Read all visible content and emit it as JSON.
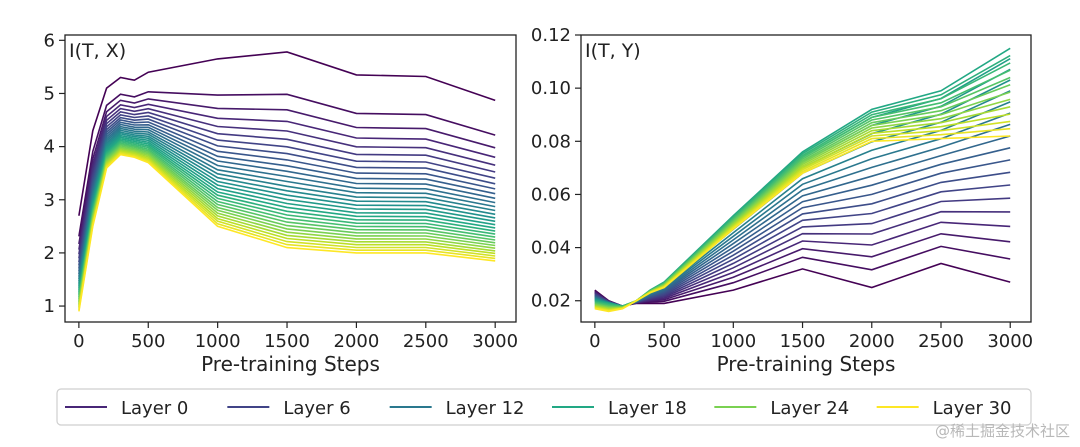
{
  "legend": [
    {
      "label": "Layer 0",
      "color": "#482677"
    },
    {
      "label": "Layer 6",
      "color": "#414487"
    },
    {
      "label": "Layer 12",
      "color": "#2a788e"
    },
    {
      "label": "Layer 18",
      "color": "#22a884"
    },
    {
      "label": "Layer 24",
      "color": "#7ad151"
    },
    {
      "label": "Layer 30",
      "color": "#fde725"
    }
  ],
  "watermark": "@稀土掘金技术社区",
  "chart_data": [
    {
      "type": "line",
      "title": "I(T, X)",
      "xlabel": "Pre-training Steps",
      "ylabel": "",
      "xlim": [
        -100,
        3150
      ],
      "ylim": [
        0.7,
        6.1
      ],
      "xticks": [
        0,
        500,
        1000,
        1500,
        2000,
        2500,
        3000
      ],
      "yticks": [
        1,
        2,
        3,
        4,
        5,
        6
      ],
      "ytick_labels": [
        "1",
        "2",
        "3",
        "4",
        "5",
        "6"
      ],
      "x": [
        0,
        100,
        200,
        300,
        400,
        500,
        1000,
        1500,
        2000,
        2500,
        3000
      ],
      "series_endpoints": {
        "layers": [
          0,
          30
        ],
        "first": [
          2.7,
          4.3,
          5.1,
          5.3,
          5.25,
          5.4,
          5.65,
          5.78,
          5.35,
          5.32,
          4.87
        ],
        "last": [
          0.9,
          2.5,
          3.6,
          3.85,
          3.8,
          3.7,
          2.5,
          2.1,
          2.0,
          2.0,
          1.85
        ]
      }
    },
    {
      "type": "line",
      "title": "I(T, Y)",
      "xlabel": "Pre-training Steps",
      "ylabel": "",
      "xlim": [
        -100,
        3150
      ],
      "ylim": [
        0.012,
        0.12
      ],
      "xticks": [
        0,
        500,
        1000,
        1500,
        2000,
        2500,
        3000
      ],
      "yticks": [
        0.02,
        0.04,
        0.06,
        0.08,
        0.1,
        0.12
      ],
      "ytick_labels": [
        "0.02",
        "0.04",
        "0.06",
        "0.08",
        "0.10",
        "0.12"
      ],
      "x": [
        0,
        100,
        200,
        300,
        400,
        500,
        1000,
        1500,
        2000,
        2500,
        3000
      ],
      "series_endpoints": {
        "layers": [
          0,
          18,
          30
        ],
        "first": [
          0.024,
          0.02,
          0.018,
          0.019,
          0.019,
          0.019,
          0.024,
          0.032,
          0.025,
          0.034,
          0.027
        ],
        "mid": [
          0.02,
          0.019,
          0.018,
          0.02,
          0.024,
          0.027,
          0.052,
          0.076,
          0.092,
          0.099,
          0.115
        ],
        "last": [
          0.017,
          0.016,
          0.017,
          0.02,
          0.023,
          0.025,
          0.047,
          0.068,
          0.08,
          0.081,
          0.082
        ]
      }
    }
  ]
}
